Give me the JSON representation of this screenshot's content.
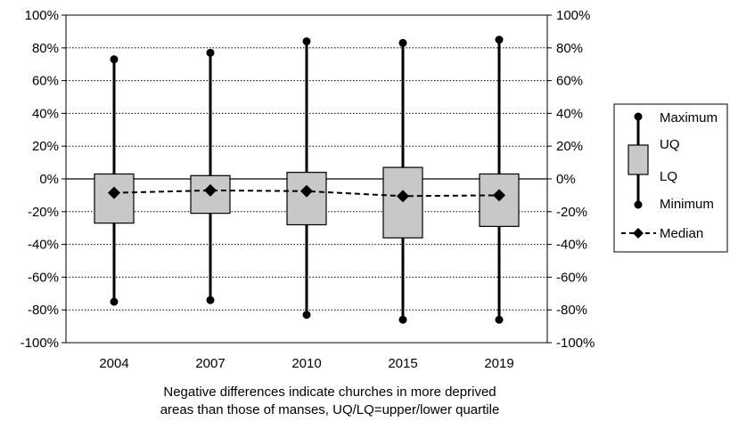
{
  "chart_data": {
    "type": "boxplot",
    "categories": [
      "2004",
      "2007",
      "2010",
      "2015",
      "2019"
    ],
    "series": [
      {
        "name": "Maximum",
        "values": [
          73,
          77,
          84,
          83,
          85
        ]
      },
      {
        "name": "UQ",
        "values": [
          3,
          2,
          4,
          7,
          3
        ]
      },
      {
        "name": "Median",
        "values": [
          -8.5,
          -7,
          -7.5,
          -10.5,
          -10
        ]
      },
      {
        "name": "LQ",
        "values": [
          -27,
          -21,
          -28,
          -36,
          -29
        ]
      },
      {
        "name": "Minimum",
        "values": [
          -75,
          -74,
          -83,
          -86,
          -86
        ]
      }
    ],
    "ylim": [
      -100,
      100
    ],
    "yticks": [
      "100%",
      "80%",
      "60%",
      "40%",
      "20%",
      "0%",
      "-20%",
      "-40%",
      "-60%",
      "-80%",
      "-100%"
    ],
    "ytick_values": [
      100,
      80,
      60,
      40,
      20,
      0,
      -20,
      -40,
      -60,
      -80,
      -100
    ],
    "grid": "horizontal dotted",
    "legend_position": "right",
    "legend": [
      "Maximum",
      "UQ",
      "LQ",
      "Minimum",
      "Median"
    ],
    "colors": {
      "box": "#c8c8c8",
      "line": "#000000",
      "grid": "#000000"
    }
  },
  "note": {
    "line1": "Negative differences indicate churches in more deprived",
    "line2": "areas than those of manses, UQ/LQ=upper/lower quartile"
  }
}
